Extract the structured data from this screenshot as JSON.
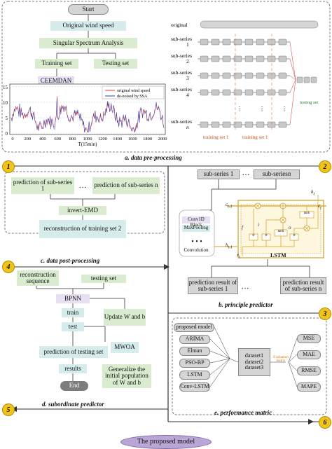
{
  "panel_a": {
    "start": "Start",
    "original_wind_speed": "Original wind speed",
    "ssa": "Singular Spectrum Analysis",
    "training_set": "Training set",
    "testing_set": "Testing set",
    "ceemdan": "CEEMDAN",
    "caption": "a.  data pre-processing",
    "plot": {
      "legend_original": "original wind speed",
      "legend_denoised": "de-noised by SSA",
      "xlabel": "T(15min)",
      "x_ticks": [
        "0",
        "200",
        "400",
        "600",
        "800",
        "1000",
        "1200",
        "1400",
        "1600",
        "1800",
        "2000"
      ],
      "y_ticks": [
        "0",
        "5",
        "10",
        "15"
      ]
    },
    "series_diagram": {
      "original": "original",
      "sub_series_label": "sub-series",
      "indices": [
        "1",
        "2",
        "3",
        "4",
        "n"
      ],
      "training_set_label": "training set 1",
      "testing_set_label": "testing set"
    }
  },
  "panel_b": {
    "sub1": "sub-series 1",
    "ellipsis": "…",
    "subn_prefix": "sub-series ",
    "subn_var": "n",
    "conv1d": "Conv1D Block",
    "maxpool": "MaxPooling",
    "convolution": "Convolution",
    "lstm": "LSTM",
    "c_prev": "c",
    "c_prev_sub": "t-1",
    "h_prev": "h",
    "h_prev_sub": "t-1",
    "x_t": "x",
    "x_t_sub": "t",
    "h_t": "h",
    "h_t_sub": "t",
    "c_t": "c",
    "c_t_sub": "t",
    "f_t": "f",
    "i_t": "i",
    "o_t": "o",
    "tanh": "tanh",
    "sigma": "σ",
    "pred1": "prediction result of sub-series 1",
    "predn": "prediction result of sub-series n",
    "caption": "b.  principle predictor"
  },
  "panel_c": {
    "pred_sub1": "prediction of sub-series 1",
    "pred_subn": "prediction of sub-series n",
    "invert": "invert-EMD",
    "recon": "reconstruction of training set 2",
    "caption": "c.  data post-processing"
  },
  "panel_d": {
    "recon_seq": "reconstruction sequence",
    "testing_set": "testing set",
    "bpnn": "BPNN",
    "train": "train",
    "test": "test",
    "pred_testing": "prediction of testing set",
    "results": "results",
    "end": "End",
    "update": "Update W and b",
    "mwoa": "MWOA",
    "generalize": "Generalize the initial population of W and b",
    "caption": "d.  subordinate predictor"
  },
  "panel_e": {
    "models": [
      "proposed model",
      "ARIMA",
      "Elman",
      "PSO-BP",
      "LSTM",
      "Conv-LSTM"
    ],
    "datasets": [
      "dataset1",
      "dataset2",
      "dataset3"
    ],
    "evaluation": "Evaluation matrix",
    "metrics": [
      "MSE",
      "MAE",
      "RMSE",
      "MAPE"
    ],
    "caption": "e.  performance matric"
  },
  "badges": [
    "1",
    "2",
    "3",
    "4",
    "5",
    "6"
  ],
  "footer": "The proposed model",
  "colors": {
    "accent_yellow": "#f2c318",
    "lstm_border": "#d4a017",
    "teal_box": "#d6ecec",
    "lavender_box": "#e6e0f2",
    "green_box": "#d9ecd0",
    "footer_ellipse": "#b9a6d6"
  }
}
